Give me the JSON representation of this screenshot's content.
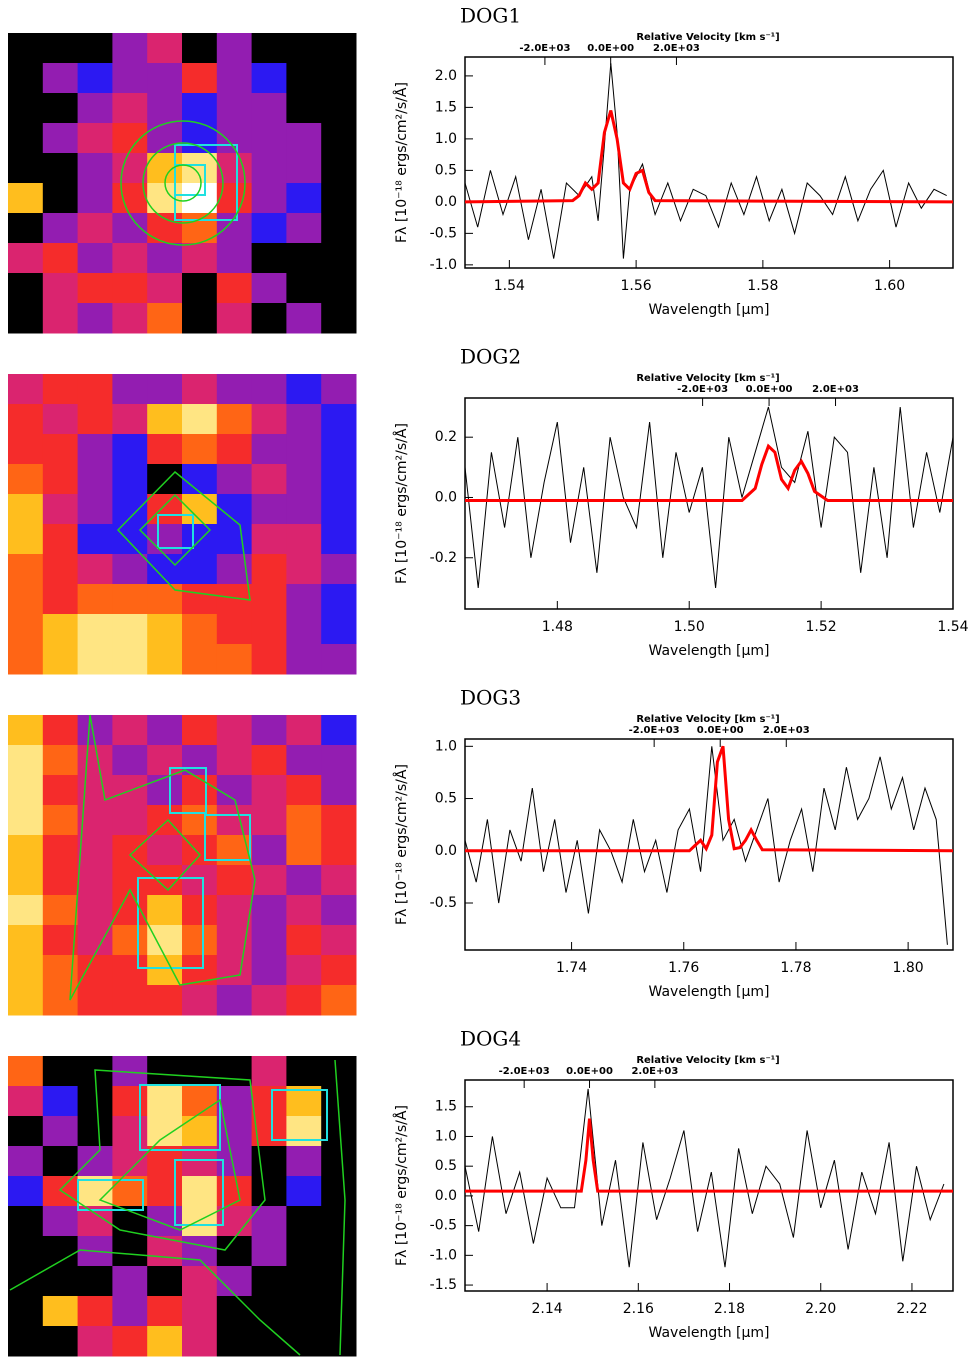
{
  "chart_data": [
    {
      "type": "heatmap",
      "zlim": [
        0,
        9
      ],
      "colors": [
        "#000000",
        "#1818ff",
        "#d0208a",
        "#ff3010",
        "#ffd020",
        "#ffffff"
      ],
      "matrix": [
        [
          0,
          0,
          0,
          3,
          4,
          0,
          3,
          0,
          0,
          0
        ],
        [
          0,
          3,
          2,
          3,
          3,
          5,
          3,
          2,
          0,
          0
        ],
        [
          0,
          0,
          3,
          4,
          3,
          2,
          3,
          3,
          0,
          0
        ],
        [
          0,
          3,
          4,
          5,
          3,
          2,
          3,
          3,
          3,
          0
        ],
        [
          0,
          0,
          3,
          4,
          7,
          8,
          4,
          3,
          3,
          0
        ],
        [
          7,
          0,
          3,
          5,
          8,
          9,
          5,
          3,
          2,
          0
        ],
        [
          0,
          3,
          4,
          3,
          5,
          6,
          3,
          2,
          3,
          0
        ],
        [
          4,
          5,
          3,
          4,
          3,
          4,
          3,
          0,
          0,
          0
        ],
        [
          0,
          4,
          5,
          5,
          4,
          0,
          5,
          3,
          0,
          0
        ],
        [
          0,
          4,
          3,
          4,
          6,
          0,
          4,
          0,
          3,
          0
        ]
      ]
    },
    {
      "type": "line",
      "title": "DOG1",
      "xlabel": "Wavelength [μm]",
      "ylabel": "Fλ [10⁻¹⁸ ergs/cm²/s/Å]",
      "x2label": "Relative Velocity [km s⁻¹]",
      "xlim": [
        1.533,
        1.61
      ],
      "xticks": [
        1.54,
        1.56,
        1.58,
        {
          "value": 1.6,
          "label": "1.60"
        }
      ],
      "ylim": [
        -1.05,
        2.3
      ],
      "yticks": [
        {
          "value": -1,
          "label": "-1.0"
        },
        -0.5,
        {
          "value": 0,
          "label": "0.0"
        },
        0.5,
        {
          "value": 1,
          "label": "1.0"
        },
        1.5,
        {
          "value": 2,
          "label": "2.0"
        }
      ],
      "x2lim": [
        -4430,
        10410
      ],
      "x2ticks": [
        {
          "value": -2000,
          "label": "-2.0E+03"
        },
        {
          "value": 0,
          "label": "0.0E+00"
        },
        {
          "value": 2000,
          "label": "2.0E+03"
        }
      ],
      "series": [
        {
          "color": "#000000",
          "x": [
            1.533,
            1.535,
            1.537,
            1.539,
            1.541,
            1.543,
            1.545,
            1.547,
            1.549,
            1.551,
            1.553,
            1.554,
            1.555,
            1.556,
            1.557,
            1.558,
            1.559,
            1.561,
            1.563,
            1.565,
            1.567,
            1.569,
            1.571,
            1.573,
            1.575,
            1.577,
            1.579,
            1.581,
            1.583,
            1.585,
            1.587,
            1.589,
            1.591,
            1.593,
            1.595,
            1.597,
            1.599,
            1.601,
            1.603,
            1.605,
            1.607,
            1.609
          ],
          "values": [
            0.3,
            -0.4,
            0.5,
            -0.2,
            0.4,
            -0.6,
            0.2,
            -0.9,
            0.3,
            0.1,
            0.4,
            -0.3,
            0.9,
            2.2,
            1.1,
            -0.9,
            0.2,
            0.6,
            -0.2,
            0.3,
            -0.3,
            0.2,
            0.1,
            -0.4,
            0.3,
            -0.2,
            0.4,
            -0.3,
            0.2,
            -0.5,
            0.3,
            0.1,
            -0.2,
            0.4,
            -0.3,
            0.2,
            0.5,
            -0.4,
            0.3,
            -0.1,
            0.2,
            0.1
          ]
        },
        {
          "color": "#ff0000",
          "x": [
            1.533,
            1.55,
            1.551,
            1.552,
            1.553,
            1.554,
            1.555,
            1.556,
            1.557,
            1.558,
            1.559,
            1.56,
            1.561,
            1.562,
            1.563,
            1.61
          ],
          "values": [
            0,
            0.02,
            0.1,
            0.3,
            0.2,
            0.3,
            1.1,
            1.45,
            1.0,
            0.3,
            0.2,
            0.45,
            0.5,
            0.15,
            0.02,
            0
          ]
        }
      ]
    },
    {
      "type": "heatmap",
      "zlim": [
        0,
        9
      ],
      "colors": [
        "#000000",
        "#1818ff",
        "#d0208a",
        "#ff3010",
        "#ffd020",
        "#ffffff"
      ],
      "matrix": [
        [
          4,
          5,
          5,
          3,
          3,
          4,
          3,
          3,
          2,
          3
        ],
        [
          5,
          4,
          5,
          4,
          7,
          8,
          6,
          4,
          3,
          2
        ],
        [
          5,
          5,
          3,
          2,
          5,
          6,
          5,
          3,
          3,
          2
        ],
        [
          6,
          5,
          3,
          2,
          0,
          2,
          3,
          4,
          3,
          2
        ],
        [
          7,
          4,
          3,
          2,
          5,
          7,
          2,
          3,
          3,
          2
        ],
        [
          7,
          5,
          2,
          2,
          3,
          2,
          2,
          4,
          4,
          2
        ],
        [
          6,
          5,
          4,
          3,
          2,
          2,
          3,
          5,
          4,
          3
        ],
        [
          6,
          5,
          6,
          6,
          6,
          5,
          5,
          5,
          3,
          2
        ],
        [
          6,
          7,
          8,
          8,
          7,
          6,
          5,
          5,
          3,
          2
        ],
        [
          6,
          7,
          8,
          8,
          7,
          6,
          6,
          5,
          3,
          3
        ]
      ]
    },
    {
      "type": "line",
      "title": "DOG2",
      "xlabel": "Wavelength [μm]",
      "ylabel": "Fλ [10⁻¹⁸ ergs/cm²/s/Å]",
      "x2label": "Relative Velocity [km s⁻¹]",
      "xlim": [
        1.466,
        1.54
      ],
      "xticks": [
        1.48,
        {
          "value": 1.5,
          "label": "1.50"
        },
        1.52,
        1.54
      ],
      "ylim": [
        -0.37,
        0.33
      ],
      "yticks": [
        -0.2,
        {
          "value": 0,
          "label": "0.0"
        },
        0.2
      ],
      "x2lim": [
        -9150,
        5535
      ],
      "x2ticks": [
        {
          "value": -2000,
          "label": "-2.0E+03"
        },
        {
          "value": 0,
          "label": "0.0E+00"
        },
        {
          "value": 2000,
          "label": "2.0E+03"
        }
      ],
      "series": [
        {
          "color": "#000000",
          "x": [
            1.466,
            1.468,
            1.47,
            1.472,
            1.474,
            1.476,
            1.478,
            1.48,
            1.482,
            1.484,
            1.486,
            1.488,
            1.49,
            1.492,
            1.494,
            1.496,
            1.498,
            1.5,
            1.502,
            1.504,
            1.506,
            1.508,
            1.51,
            1.512,
            1.514,
            1.516,
            1.518,
            1.52,
            1.522,
            1.524,
            1.526,
            1.528,
            1.53,
            1.532,
            1.534,
            1.536,
            1.538,
            1.54
          ],
          "values": [
            0.1,
            -0.3,
            0.15,
            -0.1,
            0.2,
            -0.2,
            0.05,
            0.25,
            -0.15,
            0.1,
            -0.25,
            0.2,
            0.0,
            -0.1,
            0.25,
            -0.2,
            0.15,
            -0.05,
            0.1,
            -0.3,
            0.2,
            0.0,
            0.15,
            0.3,
            0.1,
            0.05,
            0.22,
            -0.1,
            0.2,
            0.15,
            -0.25,
            0.1,
            -0.2,
            0.3,
            -0.1,
            0.15,
            -0.05,
            0.2
          ]
        },
        {
          "color": "#ff0000",
          "x": [
            1.466,
            1.508,
            1.51,
            1.511,
            1.512,
            1.513,
            1.514,
            1.515,
            1.516,
            1.517,
            1.518,
            1.519,
            1.521,
            1.54
          ],
          "values": [
            -0.01,
            -0.01,
            0.03,
            0.11,
            0.17,
            0.15,
            0.06,
            0.03,
            0.09,
            0.12,
            0.08,
            0.02,
            -0.01,
            -0.01
          ]
        }
      ]
    },
    {
      "type": "heatmap",
      "zlim": [
        0,
        9
      ],
      "colors": [
        "#000000",
        "#1818ff",
        "#d0208a",
        "#ff3010",
        "#ffd020",
        "#ffffff"
      ],
      "matrix": [
        [
          7,
          5,
          3,
          4,
          3,
          5,
          4,
          3,
          4,
          2
        ],
        [
          8,
          6,
          4,
          3,
          4,
          3,
          4,
          5,
          3,
          3
        ],
        [
          8,
          5,
          4,
          4,
          3,
          5,
          3,
          4,
          5,
          3
        ],
        [
          8,
          6,
          4,
          4,
          5,
          6,
          4,
          4,
          6,
          5
        ],
        [
          7,
          5,
          4,
          5,
          4,
          5,
          6,
          3,
          6,
          5
        ],
        [
          7,
          5,
          4,
          5,
          5,
          4,
          5,
          4,
          3,
          4
        ],
        [
          8,
          6,
          4,
          5,
          7,
          5,
          4,
          3,
          4,
          3
        ],
        [
          7,
          5,
          4,
          6,
          8,
          6,
          4,
          3,
          5,
          4
        ],
        [
          7,
          6,
          5,
          5,
          7,
          5,
          4,
          3,
          4,
          5
        ],
        [
          7,
          6,
          5,
          5,
          5,
          4,
          3,
          4,
          5,
          6
        ]
      ]
    },
    {
      "type": "line",
      "title": "DOG3",
      "xlabel": "Wavelength [μm]",
      "ylabel": "Fλ [10⁻¹⁸ ergs/cm²/s/Å]",
      "x2label": "Relative Velocity [km s⁻¹]",
      "xlim": [
        1.721,
        1.808
      ],
      "xticks": [
        1.74,
        1.76,
        1.78,
        {
          "value": 1.8,
          "label": "1.80"
        }
      ],
      "ylim": [
        -0.95,
        1.07
      ],
      "yticks": [
        -0.5,
        {
          "value": 0,
          "label": "0.0"
        },
        0.5,
        {
          "value": 1,
          "label": "1.0"
        }
      ],
      "x2lim": [
        -7727,
        7048
      ],
      "x2ticks": [
        {
          "value": -2000,
          "label": "-2.0E+03"
        },
        {
          "value": 0,
          "label": "0.0E+00"
        },
        {
          "value": 2000,
          "label": "2.0E+03"
        }
      ],
      "series": [
        {
          "color": "#000000",
          "x": [
            1.721,
            1.723,
            1.725,
            1.727,
            1.729,
            1.731,
            1.733,
            1.735,
            1.737,
            1.739,
            1.741,
            1.743,
            1.745,
            1.747,
            1.749,
            1.751,
            1.753,
            1.755,
            1.757,
            1.759,
            1.761,
            1.763,
            1.765,
            1.767,
            1.769,
            1.771,
            1.773,
            1.775,
            1.777,
            1.779,
            1.781,
            1.783,
            1.785,
            1.787,
            1.789,
            1.791,
            1.793,
            1.795,
            1.797,
            1.799,
            1.801,
            1.803,
            1.805,
            1.807
          ],
          "values": [
            0.1,
            -0.3,
            0.3,
            -0.5,
            0.2,
            -0.1,
            0.6,
            -0.2,
            0.3,
            -0.4,
            0.1,
            -0.6,
            0.2,
            0.0,
            -0.3,
            0.3,
            -0.2,
            0.1,
            -0.4,
            0.2,
            0.4,
            -0.2,
            1.0,
            0.1,
            0.3,
            -0.1,
            0.2,
            0.5,
            -0.3,
            0.1,
            0.4,
            -0.2,
            0.6,
            0.2,
            0.8,
            0.3,
            0.5,
            0.9,
            0.4,
            0.7,
            0.2,
            0.6,
            0.3,
            -0.9
          ]
        },
        {
          "color": "#ff0000",
          "x": [
            1.721,
            1.761,
            1.762,
            1.763,
            1.764,
            1.765,
            1.766,
            1.767,
            1.768,
            1.769,
            1.77,
            1.771,
            1.772,
            1.773,
            1.774,
            1.808
          ],
          "values": [
            0,
            0,
            0.05,
            0.1,
            0.02,
            0.15,
            0.85,
            1.0,
            0.3,
            0.02,
            0.03,
            0.1,
            0.2,
            0.1,
            0.01,
            0
          ]
        }
      ]
    },
    {
      "type": "heatmap",
      "zlim": [
        0,
        9
      ],
      "colors": [
        "#000000",
        "#1818ff",
        "#d0208a",
        "#ff3010",
        "#ffd020",
        "#ffffff"
      ],
      "matrix": [
        [
          6,
          0,
          0,
          3,
          0,
          0,
          0,
          4,
          0,
          0
        ],
        [
          4,
          2,
          0,
          5,
          8,
          6,
          3,
          5,
          7,
          0
        ],
        [
          0,
          3,
          0,
          4,
          8,
          7,
          3,
          5,
          8,
          0
        ],
        [
          3,
          0,
          3,
          4,
          5,
          4,
          3,
          0,
          3,
          0
        ],
        [
          2,
          5,
          8,
          6,
          5,
          8,
          5,
          0,
          2,
          0
        ],
        [
          0,
          3,
          4,
          0,
          3,
          8,
          4,
          3,
          0,
          0
        ],
        [
          0,
          0,
          3,
          0,
          4,
          3,
          0,
          3,
          0,
          0
        ],
        [
          0,
          0,
          0,
          3,
          0,
          4,
          3,
          0,
          0,
          0
        ],
        [
          0,
          7,
          5,
          3,
          5,
          4,
          0,
          0,
          0,
          0
        ],
        [
          0,
          0,
          4,
          5,
          7,
          4,
          0,
          0,
          0,
          0
        ]
      ]
    },
    {
      "type": "line",
      "title": "DOG4",
      "xlabel": "Wavelength [μm]",
      "ylabel": "Fλ [10⁻¹⁸ ergs/cm²/s/Å]",
      "x2label": "Relative Velocity [km s⁻¹]",
      "xlim": [
        2.122,
        2.229
      ],
      "xticks": [
        2.14,
        2.16,
        2.18,
        {
          "value": 2.2,
          "label": "2.20"
        },
        2.22
      ],
      "ylim": [
        -1.6,
        1.95
      ],
      "yticks": [
        -1.5,
        {
          "value": -1,
          "label": "-1.0"
        },
        -0.5,
        {
          "value": 0,
          "label": "0.0"
        },
        0.5,
        {
          "value": 1,
          "label": "1.0"
        },
        1.5
      ],
      "x2lim": [
        -3811,
        11125
      ],
      "x2ticks": [
        {
          "value": -2000,
          "label": "-2.0E+03"
        },
        {
          "value": 0,
          "label": "0.0E+00"
        },
        {
          "value": 2000,
          "label": "2.0E+03"
        }
      ],
      "series": [
        {
          "color": "#000000",
          "x": [
            2.122,
            2.125,
            2.128,
            2.131,
            2.134,
            2.137,
            2.14,
            2.143,
            2.146,
            2.149,
            2.152,
            2.155,
            2.158,
            2.161,
            2.164,
            2.167,
            2.17,
            2.173,
            2.176,
            2.179,
            2.182,
            2.185,
            2.188,
            2.191,
            2.194,
            2.197,
            2.2,
            2.203,
            2.206,
            2.209,
            2.212,
            2.215,
            2.218,
            2.221,
            2.224,
            2.227
          ],
          "values": [
            0.5,
            -0.6,
            1.0,
            -0.3,
            0.4,
            -0.8,
            0.3,
            -0.2,
            -0.2,
            1.8,
            -0.5,
            0.6,
            -1.2,
            0.9,
            -0.4,
            0.3,
            1.1,
            -0.6,
            0.4,
            -1.2,
            0.8,
            -0.3,
            0.5,
            0.2,
            -0.7,
            1.1,
            -0.2,
            0.6,
            -0.9,
            0.4,
            -0.3,
            0.9,
            -1.1,
            0.5,
            -0.4,
            0.2
          ]
        },
        {
          "color": "#ff0000",
          "x": [
            2.122,
            2.1475,
            2.1485,
            2.1493,
            2.1501,
            2.1511,
            2.229
          ],
          "values": [
            0.08,
            0.08,
            0.6,
            1.3,
            0.6,
            0.08,
            0.08
          ]
        }
      ]
    }
  ]
}
